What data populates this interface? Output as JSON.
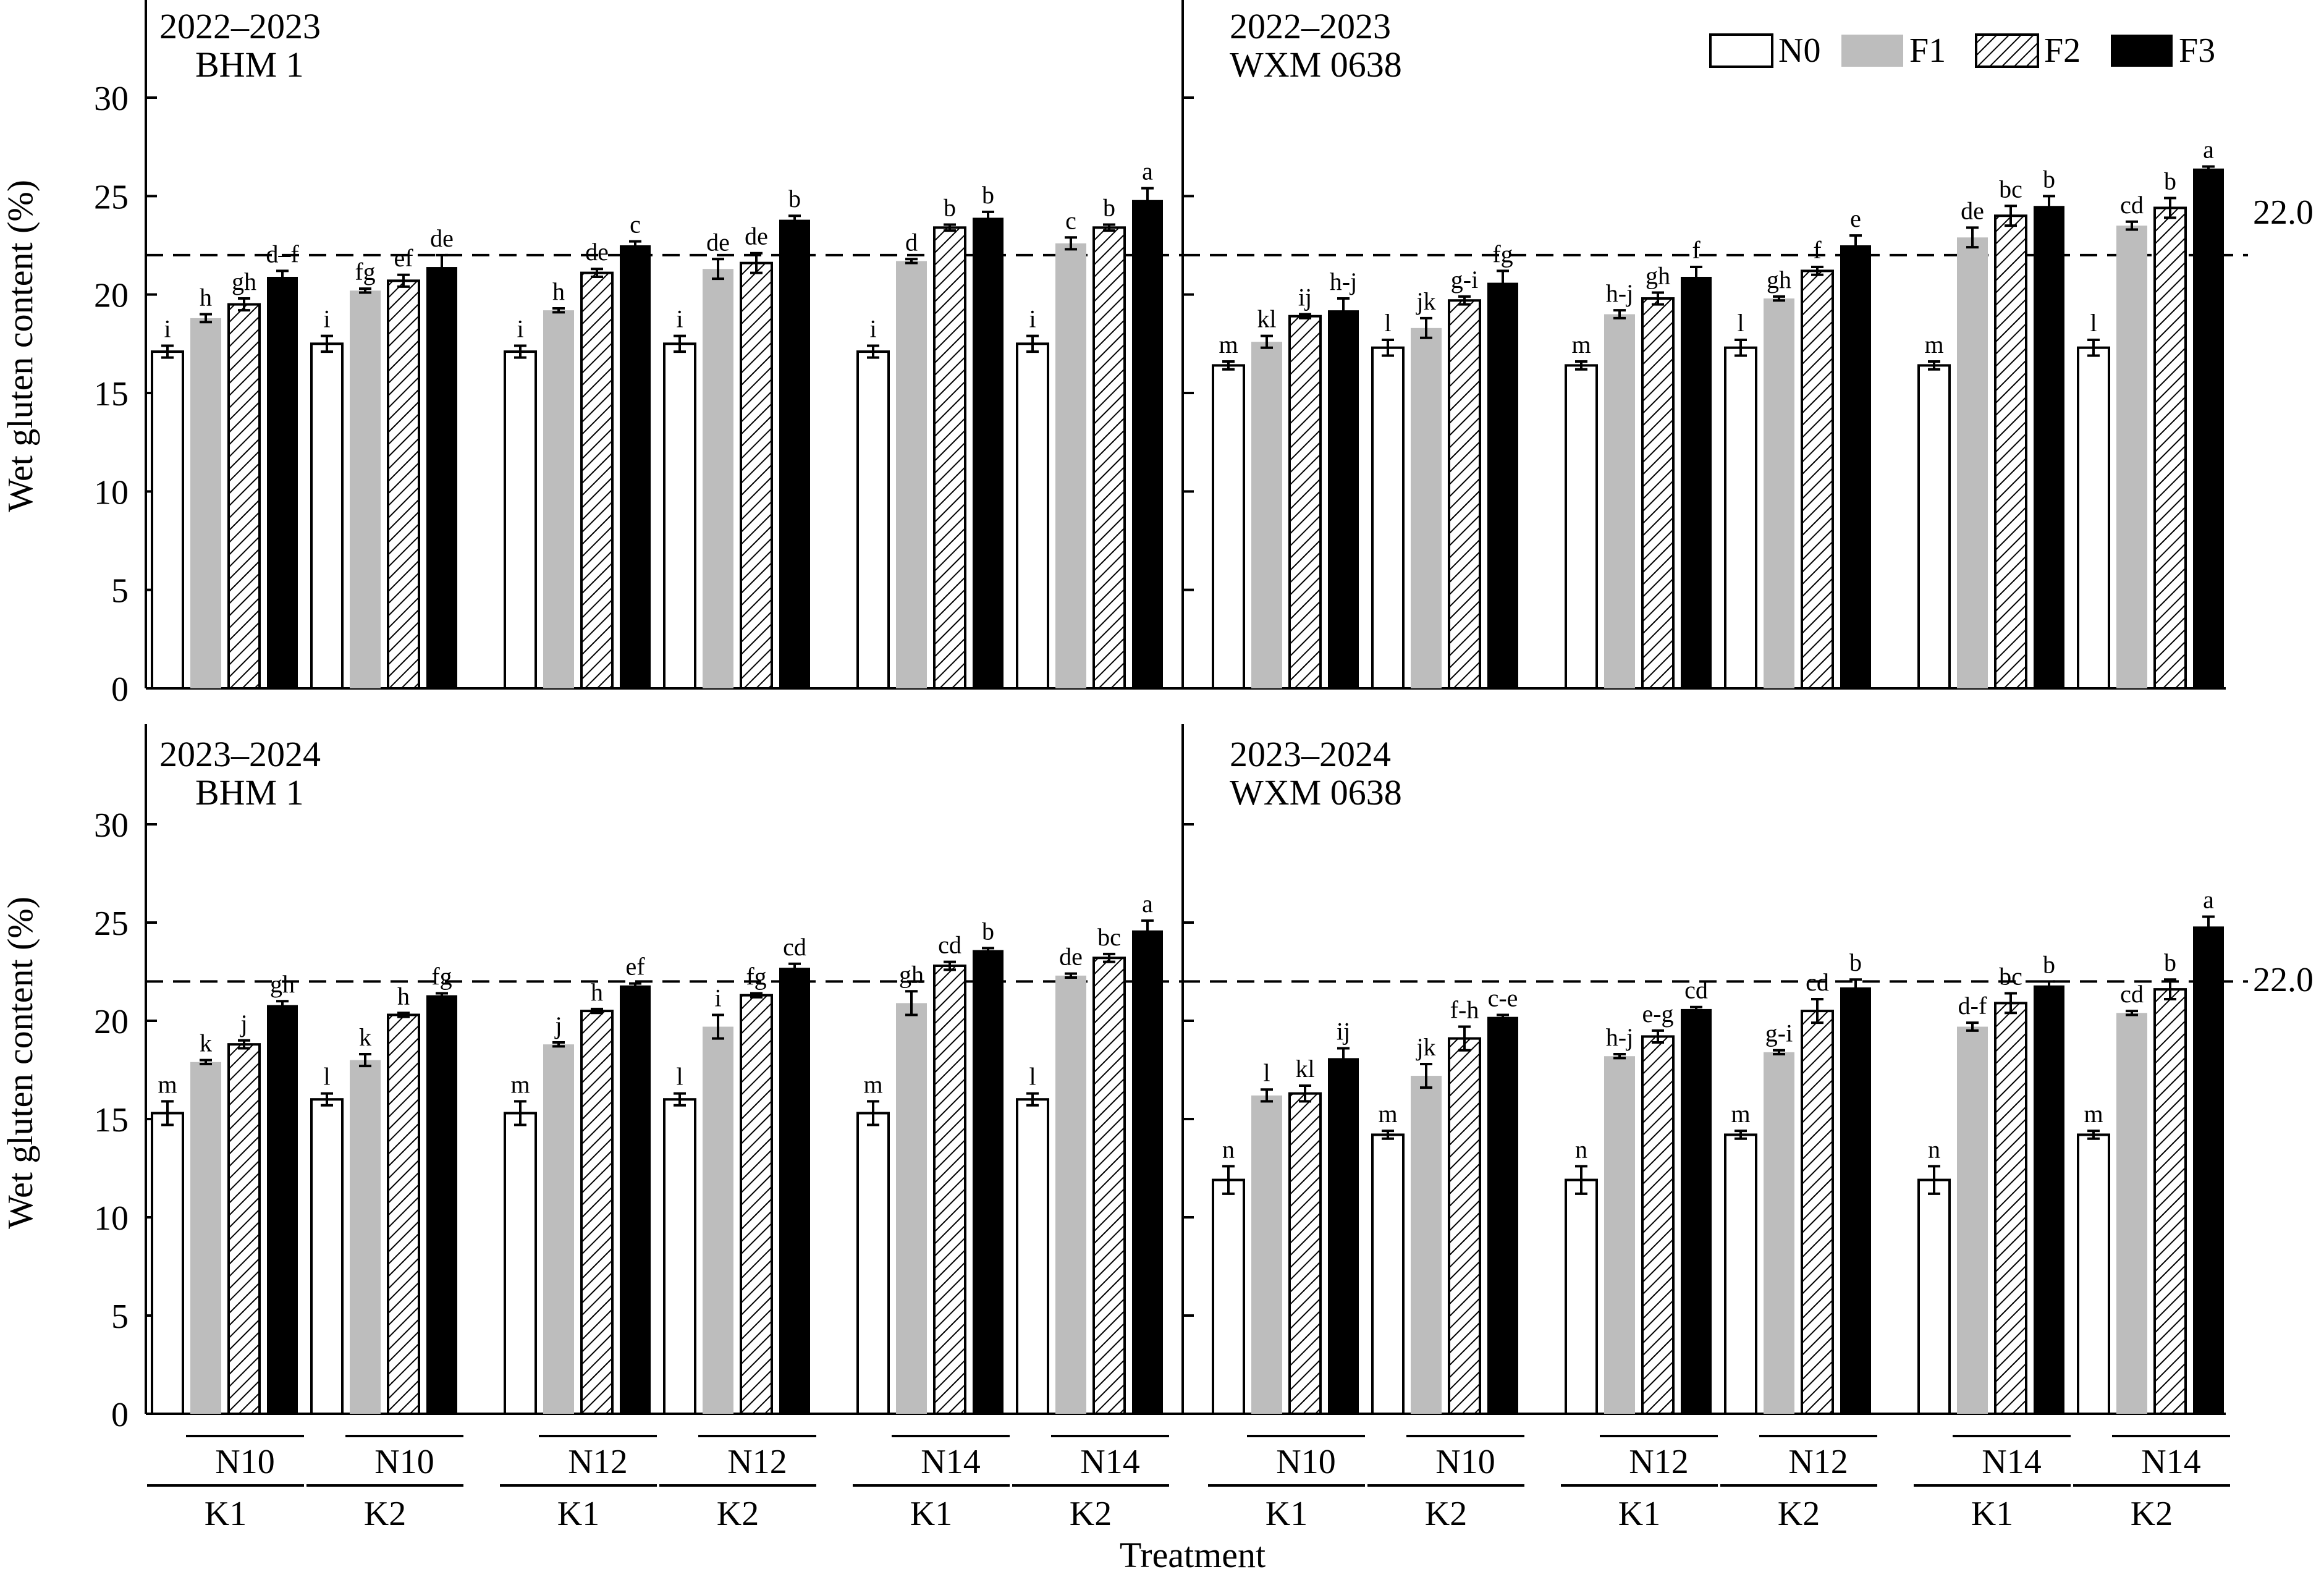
{
  "figure": {
    "ylabel": "Wet gluten content (%)",
    "xlabel": "Treatment",
    "reference_line_label": "22.0",
    "legend": [
      "N0",
      "F1",
      "F2",
      "F3"
    ],
    "colors": {
      "N0": "#ffffff",
      "F1": "#bdbdbd",
      "F2": "hatch",
      "F3": "#000000"
    }
  },
  "chart_data": [
    {
      "type": "bar",
      "title": "2022–2023",
      "subtitle": "BHM 1",
      "ylim": [
        0,
        35
      ],
      "yticks": [
        "0",
        "5",
        "10",
        "15",
        "20",
        "25",
        "30"
      ],
      "reference_line": 22.0,
      "categories": [
        "N10 K1",
        "N10 K2",
        "N12 K1",
        "N12 K2",
        "N14 K1",
        "N14 K2"
      ],
      "series": [
        {
          "name": "N0",
          "values": [
            17.1,
            17.5,
            17.1,
            17.5,
            17.1,
            17.5
          ],
          "errors": [
            0.3,
            0.4,
            0.3,
            0.4,
            0.3,
            0.4
          ],
          "letters": [
            "i",
            "i",
            "i",
            "i",
            "i",
            "i"
          ]
        },
        {
          "name": "F1",
          "values": [
            18.8,
            20.2,
            19.2,
            21.3,
            21.7,
            22.6
          ],
          "errors": [
            0.2,
            0.1,
            0.1,
            0.5,
            0.1,
            0.3
          ],
          "letters": [
            "h",
            "fg",
            "h",
            "de",
            "d",
            "c"
          ]
        },
        {
          "name": "F2",
          "values": [
            19.5,
            20.7,
            21.1,
            21.6,
            23.4,
            23.4
          ],
          "errors": [
            0.3,
            0.3,
            0.2,
            0.5,
            0.15,
            0.15
          ],
          "letters": [
            "gh",
            "ef",
            "de",
            "de",
            "b",
            "b"
          ]
        },
        {
          "name": "F3",
          "values": [
            20.9,
            21.4,
            22.5,
            23.8,
            23.9,
            24.8
          ],
          "errors": [
            0.3,
            0.6,
            0.2,
            0.2,
            0.3,
            0.6
          ],
          "letters": [
            "d–f",
            "de",
            "c",
            "b",
            "b",
            "a"
          ]
        }
      ]
    },
    {
      "type": "bar",
      "title": "2022–2023",
      "subtitle": "WXM 0638",
      "ylim": [
        0,
        35
      ],
      "yticks": [],
      "reference_line": 22.0,
      "categories": [
        "N10 K1",
        "N10 K2",
        "N12 K1",
        "N12 K2",
        "N14 K1",
        "N14 K2"
      ],
      "series": [
        {
          "name": "N0",
          "values": [
            16.4,
            17.3,
            16.4,
            17.3,
            16.4,
            17.3
          ],
          "errors": [
            0.2,
            0.4,
            0.2,
            0.4,
            0.2,
            0.4
          ],
          "letters": [
            "m",
            "l",
            "m",
            "l",
            "m",
            "l"
          ]
        },
        {
          "name": "F1",
          "values": [
            17.6,
            18.3,
            19.0,
            19.8,
            22.9,
            23.5
          ],
          "errors": [
            0.3,
            0.5,
            0.2,
            0.1,
            0.5,
            0.2
          ],
          "letters": [
            "kl",
            "jk",
            "h-j",
            "gh",
            "de",
            "cd"
          ]
        },
        {
          "name": "F2",
          "values": [
            18.9,
            19.7,
            19.8,
            21.2,
            24.0,
            24.4
          ],
          "errors": [
            0.1,
            0.2,
            0.3,
            0.2,
            0.5,
            0.5
          ],
          "letters": [
            "ij",
            "g-i",
            "gh",
            "f",
            "bc",
            "b"
          ]
        },
        {
          "name": "F3",
          "values": [
            19.2,
            20.6,
            20.9,
            22.5,
            24.5,
            26.4
          ],
          "errors": [
            0.6,
            0.6,
            0.5,
            0.5,
            0.5,
            0.1
          ],
          "letters": [
            "h-j",
            "fg",
            "f",
            "e",
            "b",
            "a"
          ]
        }
      ]
    },
    {
      "type": "bar",
      "title": "2023–2024",
      "subtitle": "BHM 1",
      "ylim": [
        0,
        35
      ],
      "yticks": [
        "0",
        "5",
        "10",
        "15",
        "20",
        "25",
        "30"
      ],
      "reference_line": 22.0,
      "categories": [
        "N10 K1",
        "N10 K2",
        "N12 K1",
        "N12 K2",
        "N14 K1",
        "N14 K2"
      ],
      "series": [
        {
          "name": "N0",
          "values": [
            15.3,
            16.0,
            15.3,
            16.0,
            15.3,
            16.0
          ],
          "errors": [
            0.6,
            0.3,
            0.6,
            0.3,
            0.6,
            0.3
          ],
          "letters": [
            "m",
            "l",
            "m",
            "l",
            "m",
            "l"
          ]
        },
        {
          "name": "F1",
          "values": [
            17.9,
            18.0,
            18.8,
            19.7,
            20.9,
            22.3
          ],
          "errors": [
            0.1,
            0.3,
            0.1,
            0.6,
            0.6,
            0.1
          ],
          "letters": [
            "k",
            "k",
            "j",
            "i",
            "gh",
            "de"
          ]
        },
        {
          "name": "F2",
          "values": [
            18.8,
            20.3,
            20.5,
            21.3,
            22.8,
            23.2
          ],
          "errors": [
            0.2,
            0.1,
            0.1,
            0.1,
            0.2,
            0.2
          ],
          "letters": [
            "j",
            "h",
            "h",
            "fg",
            "cd",
            "bc"
          ]
        },
        {
          "name": "F3",
          "values": [
            20.8,
            21.3,
            21.8,
            22.7,
            23.6,
            24.6
          ],
          "errors": [
            0.2,
            0.1,
            0.1,
            0.2,
            0.1,
            0.5
          ],
          "letters": [
            "gh",
            "fg",
            "ef",
            "cd",
            "b",
            "a"
          ]
        }
      ]
    },
    {
      "type": "bar",
      "title": "2023–2024",
      "subtitle": "WXM 0638",
      "ylim": [
        0,
        35
      ],
      "yticks": [],
      "reference_line": 22.0,
      "categories": [
        "N10 K1",
        "N10 K2",
        "N12 K1",
        "N12 K2",
        "N14 K1",
        "N14 K2"
      ],
      "series": [
        {
          "name": "N0",
          "values": [
            11.9,
            14.2,
            11.9,
            14.2,
            11.9,
            14.2
          ],
          "errors": [
            0.7,
            0.2,
            0.7,
            0.2,
            0.7,
            0.2
          ],
          "letters": [
            "n",
            "m",
            "n",
            "m",
            "n",
            "m"
          ]
        },
        {
          "name": "F1",
          "values": [
            16.2,
            17.2,
            18.2,
            18.4,
            19.7,
            20.4
          ],
          "errors": [
            0.3,
            0.6,
            0.1,
            0.1,
            0.2,
            0.1
          ],
          "letters": [
            "l",
            "jk",
            "h-j",
            "g-i",
            "d-f",
            "cd"
          ]
        },
        {
          "name": "F2",
          "values": [
            16.3,
            19.1,
            19.2,
            20.5,
            20.9,
            21.6
          ],
          "errors": [
            0.4,
            0.6,
            0.3,
            0.6,
            0.5,
            0.5
          ],
          "letters": [
            "kl",
            "f-h",
            "e-g",
            "cd",
            "bc",
            "b"
          ]
        },
        {
          "name": "F3",
          "values": [
            18.1,
            20.2,
            20.6,
            21.7,
            21.8,
            24.8
          ],
          "errors": [
            0.5,
            0.1,
            0.1,
            0.4,
            0.2,
            0.5
          ],
          "letters": [
            "ij",
            "c-e",
            "cd",
            "b",
            "b",
            "a"
          ]
        }
      ]
    }
  ],
  "x_axis_groups": {
    "n_labels": [
      "N10",
      "N10",
      "N12",
      "N12",
      "N14",
      "N14"
    ],
    "k_labels": [
      "K1",
      "K2",
      "K1",
      "K2",
      "K1",
      "K2"
    ]
  }
}
